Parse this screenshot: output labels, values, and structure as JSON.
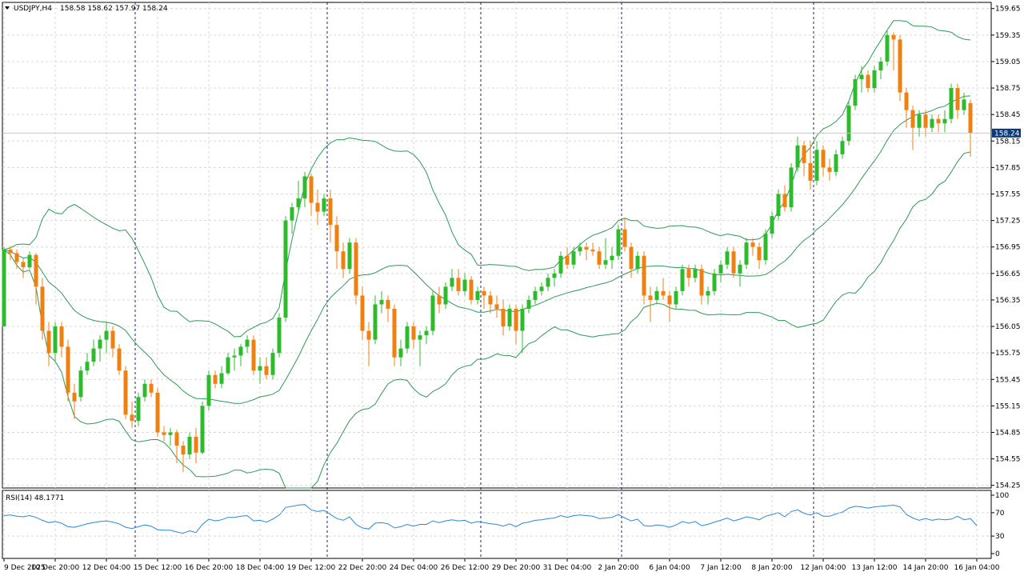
{
  "header": {
    "symbol": "USDJPY,H4",
    "ohlc": "158.58 158.62 157.97 158.24",
    "dropdown_icon": "triangle-down-icon"
  },
  "price_tag": {
    "value": "158.24"
  },
  "rsi": {
    "label": "RSI(14) 48.1771"
  },
  "colors": {
    "bull": "#2dbb2d",
    "bear": "#f08010",
    "bands": "#2d9a55",
    "rsi_line": "#2a88d8",
    "price_tag_bg": "#0a3a78",
    "grid": "#d8d8d8",
    "separator": "#1a1a80"
  },
  "chart_data": {
    "type": "candlestick",
    "y_ticks": [
      "159.65",
      "159.35",
      "159.05",
      "158.75",
      "158.45",
      "158.15",
      "157.85",
      "157.55",
      "157.25",
      "156.95",
      "156.65",
      "156.35",
      "156.05",
      "155.75",
      "155.45",
      "155.15",
      "154.85",
      "154.55",
      "154.25"
    ],
    "ylim": [
      154.22,
      159.72
    ],
    "rsi_ticks": [
      "100",
      "70",
      "30",
      "0"
    ],
    "rsi_ylim": [
      0,
      100
    ],
    "x_ticks": [
      "9 Dec 2025",
      "10 Dec 20:00",
      "12 Dec 04:00",
      "15 Dec 12:00",
      "16 Dec 20:00",
      "18 Dec 04:00",
      "19 Dec 12:00",
      "22 Dec 20:00",
      "24 Dec 04:00",
      "26 Dec 12:00",
      "29 Dec 20:00",
      "31 Dec 04:00",
      "2 Jan 20:00",
      "6 Jan 04:00",
      "7 Jan 12:00",
      "8 Jan 20:00",
      "12 Jan 04:00",
      "13 Jan 12:00",
      "14 Jan 20:00",
      "16 Jan 04:00"
    ],
    "x_tick_index": [
      0,
      8,
      16,
      24,
      32,
      40,
      48,
      56,
      64,
      72,
      80,
      88,
      96,
      104,
      112,
      120,
      128,
      136,
      144,
      152
    ],
    "separator_index": [
      21,
      51,
      75,
      97,
      127
    ],
    "candles": [
      [
        156.05,
        156.95,
        156.05,
        156.92
      ],
      [
        156.92,
        156.96,
        156.8,
        156.88
      ],
      [
        156.88,
        156.92,
        156.7,
        156.78
      ],
      [
        156.78,
        156.82,
        156.6,
        156.72
      ],
      [
        156.72,
        156.9,
        156.7,
        156.86
      ],
      [
        156.86,
        156.88,
        156.3,
        156.5
      ],
      [
        156.5,
        156.6,
        155.9,
        156.0
      ],
      [
        156.0,
        156.1,
        155.6,
        155.75
      ],
      [
        155.75,
        156.1,
        155.65,
        156.05
      ],
      [
        156.05,
        156.1,
        155.7,
        155.82
      ],
      [
        155.82,
        155.9,
        155.2,
        155.3
      ],
      [
        155.3,
        155.4,
        155.0,
        155.2
      ],
      [
        155.25,
        155.6,
        155.2,
        155.55
      ],
      [
        155.55,
        155.75,
        155.5,
        155.65
      ],
      [
        155.65,
        155.9,
        155.6,
        155.8
      ],
      [
        155.8,
        155.95,
        155.65,
        155.9
      ],
      [
        155.9,
        156.1,
        155.75,
        156.0
      ],
      [
        156.0,
        156.05,
        155.7,
        155.8
      ],
      [
        155.8,
        155.85,
        155.5,
        155.55
      ],
      [
        155.55,
        155.6,
        155.0,
        155.05
      ],
      [
        155.05,
        155.2,
        154.9,
        154.98
      ],
      [
        154.98,
        155.3,
        154.92,
        155.25
      ],
      [
        155.25,
        155.45,
        155.2,
        155.4
      ],
      [
        155.4,
        155.45,
        155.25,
        155.3
      ],
      [
        155.3,
        155.35,
        154.8,
        154.85
      ],
      [
        154.85,
        154.92,
        154.75,
        154.82
      ],
      [
        154.82,
        154.9,
        154.7,
        154.85
      ],
      [
        154.85,
        154.88,
        154.5,
        154.7
      ],
      [
        154.7,
        154.75,
        154.4,
        154.6
      ],
      [
        154.6,
        154.85,
        154.55,
        154.8
      ],
      [
        154.8,
        154.9,
        154.5,
        154.62
      ],
      [
        154.62,
        155.2,
        154.6,
        155.15
      ],
      [
        155.15,
        155.55,
        155.1,
        155.5
      ],
      [
        155.5,
        155.55,
        155.35,
        155.4
      ],
      [
        155.4,
        155.6,
        155.35,
        155.52
      ],
      [
        155.52,
        155.75,
        155.5,
        155.7
      ],
      [
        155.7,
        155.8,
        155.55,
        155.72
      ],
      [
        155.72,
        155.85,
        155.6,
        155.82
      ],
      [
        155.82,
        155.95,
        155.75,
        155.9
      ],
      [
        155.9,
        155.95,
        155.5,
        155.55
      ],
      [
        155.55,
        155.7,
        155.4,
        155.6
      ],
      [
        155.6,
        155.7,
        155.45,
        155.5
      ],
      [
        155.5,
        155.8,
        155.45,
        155.75
      ],
      [
        155.75,
        156.2,
        155.7,
        156.15
      ],
      [
        156.15,
        157.3,
        156.1,
        157.25
      ],
      [
        157.25,
        157.45,
        157.1,
        157.4
      ],
      [
        157.4,
        157.7,
        157.35,
        157.5
      ],
      [
        157.5,
        157.8,
        157.4,
        157.75
      ],
      [
        157.75,
        157.78,
        157.3,
        157.45
      ],
      [
        157.45,
        157.6,
        157.2,
        157.35
      ],
      [
        157.35,
        157.55,
        157.3,
        157.5
      ],
      [
        157.5,
        157.6,
        157.0,
        157.2
      ],
      [
        157.2,
        157.3,
        156.7,
        156.9
      ],
      [
        156.9,
        157.0,
        156.6,
        156.7
      ],
      [
        156.7,
        157.05,
        156.65,
        157.0
      ],
      [
        157.0,
        157.05,
        156.3,
        156.4
      ],
      [
        156.4,
        156.5,
        155.9,
        156.0
      ],
      [
        156.0,
        156.1,
        155.6,
        155.9
      ],
      [
        155.9,
        156.4,
        155.85,
        156.3
      ],
      [
        156.3,
        156.45,
        156.2,
        156.35
      ],
      [
        156.35,
        156.4,
        156.1,
        156.25
      ],
      [
        156.25,
        156.3,
        155.6,
        155.7
      ],
      [
        155.7,
        155.9,
        155.6,
        155.8
      ],
      [
        155.8,
        156.1,
        155.75,
        156.05
      ],
      [
        156.05,
        156.1,
        155.8,
        155.9
      ],
      [
        155.9,
        156.0,
        155.6,
        155.95
      ],
      [
        155.95,
        156.05,
        155.85,
        156.0
      ],
      [
        156.0,
        156.45,
        155.95,
        156.4
      ],
      [
        156.4,
        156.5,
        156.2,
        156.3
      ],
      [
        156.3,
        156.55,
        156.25,
        156.5
      ],
      [
        156.5,
        156.7,
        156.45,
        156.6
      ],
      [
        156.6,
        156.7,
        156.4,
        156.45
      ],
      [
        156.45,
        156.65,
        156.4,
        156.58
      ],
      [
        156.58,
        156.62,
        156.3,
        156.35
      ],
      [
        156.35,
        156.5,
        156.3,
        156.45
      ],
      [
        156.45,
        156.5,
        156.25,
        156.4
      ],
      [
        156.4,
        156.45,
        156.2,
        156.3
      ],
      [
        156.3,
        156.4,
        156.15,
        156.25
      ],
      [
        156.25,
        156.35,
        155.95,
        156.05
      ],
      [
        156.05,
        156.3,
        156.0,
        156.25
      ],
      [
        156.25,
        156.3,
        155.85,
        156.0
      ],
      [
        156.0,
        156.3,
        155.75,
        156.25
      ],
      [
        156.25,
        156.4,
        156.2,
        156.35
      ],
      [
        156.35,
        156.5,
        156.3,
        156.45
      ],
      [
        156.45,
        156.55,
        156.4,
        156.5
      ],
      [
        156.5,
        156.65,
        156.45,
        156.6
      ],
      [
        156.6,
        156.7,
        156.5,
        156.65
      ],
      [
        156.65,
        156.9,
        156.6,
        156.85
      ],
      [
        156.85,
        156.95,
        156.7,
        156.75
      ],
      [
        156.75,
        156.95,
        156.7,
        156.9
      ],
      [
        156.9,
        157.0,
        156.85,
        156.95
      ],
      [
        156.95,
        157.0,
        156.8,
        156.92
      ],
      [
        156.92,
        157.0,
        156.85,
        156.9
      ],
      [
        156.9,
        156.95,
        156.7,
        156.75
      ],
      [
        156.75,
        157.05,
        156.7,
        156.8
      ],
      [
        156.8,
        156.95,
        156.7,
        156.85
      ],
      [
        156.85,
        157.2,
        156.8,
        157.15
      ],
      [
        157.15,
        157.28,
        156.9,
        156.95
      ],
      [
        156.95,
        157.0,
        156.6,
        156.7
      ],
      [
        156.7,
        156.9,
        156.65,
        156.85
      ],
      [
        156.85,
        156.9,
        156.3,
        156.4
      ],
      [
        156.4,
        156.5,
        156.1,
        156.35
      ],
      [
        156.35,
        156.5,
        156.3,
        156.45
      ],
      [
        156.45,
        156.6,
        156.35,
        156.4
      ],
      [
        156.4,
        156.45,
        156.1,
        156.3
      ],
      [
        156.3,
        156.5,
        156.25,
        156.45
      ],
      [
        156.45,
        156.75,
        156.4,
        156.7
      ],
      [
        156.7,
        156.75,
        156.5,
        156.6
      ],
      [
        156.6,
        156.75,
        156.55,
        156.7
      ],
      [
        156.7,
        156.75,
        156.3,
        156.4
      ],
      [
        156.4,
        156.5,
        156.3,
        156.45
      ],
      [
        156.45,
        156.7,
        156.4,
        156.65
      ],
      [
        156.65,
        156.8,
        156.55,
        156.75
      ],
      [
        156.75,
        156.95,
        156.7,
        156.9
      ],
      [
        156.9,
        156.95,
        156.6,
        156.65
      ],
      [
        156.65,
        156.8,
        156.5,
        156.75
      ],
      [
        156.75,
        157.05,
        156.7,
        157.0
      ],
      [
        157.0,
        157.05,
        156.85,
        156.95
      ],
      [
        156.95,
        157.0,
        156.7,
        156.8
      ],
      [
        156.8,
        157.15,
        156.75,
        157.1
      ],
      [
        157.1,
        157.35,
        157.05,
        157.3
      ],
      [
        157.3,
        157.6,
        157.25,
        157.55
      ],
      [
        157.55,
        157.65,
        157.35,
        157.4
      ],
      [
        157.4,
        157.9,
        157.35,
        157.85
      ],
      [
        157.85,
        158.2,
        157.8,
        158.1
      ],
      [
        158.1,
        158.15,
        157.75,
        157.9
      ],
      [
        157.9,
        158.15,
        157.6,
        157.7
      ],
      [
        157.7,
        158.15,
        157.65,
        158.05
      ],
      [
        158.05,
        158.1,
        157.75,
        157.85
      ],
      [
        157.85,
        157.95,
        157.7,
        157.8
      ],
      [
        157.8,
        158.05,
        157.75,
        158.0
      ],
      [
        158.0,
        158.2,
        157.95,
        158.15
      ],
      [
        158.15,
        158.6,
        158.1,
        158.55
      ],
      [
        158.55,
        158.9,
        158.5,
        158.85
      ],
      [
        158.85,
        159.0,
        158.7,
        158.9
      ],
      [
        158.9,
        158.95,
        158.7,
        158.75
      ],
      [
        158.75,
        159.0,
        158.7,
        158.95
      ],
      [
        158.95,
        159.1,
        158.85,
        159.05
      ],
      [
        159.05,
        159.4,
        159.0,
        159.35
      ],
      [
        159.35,
        159.38,
        158.95,
        159.3
      ],
      [
        159.3,
        159.35,
        158.6,
        158.7
      ],
      [
        158.7,
        158.75,
        158.3,
        158.5
      ],
      [
        158.5,
        158.55,
        158.05,
        158.3
      ],
      [
        158.3,
        158.5,
        158.2,
        158.45
      ],
      [
        158.45,
        158.5,
        158.2,
        158.3
      ],
      [
        158.3,
        158.45,
        158.25,
        158.4
      ],
      [
        158.4,
        158.45,
        158.25,
        158.35
      ],
      [
        158.35,
        158.5,
        158.25,
        158.4
      ],
      [
        158.4,
        158.8,
        158.35,
        158.75
      ],
      [
        158.75,
        158.8,
        158.4,
        158.5
      ],
      [
        158.5,
        158.7,
        158.45,
        158.62
      ],
      [
        158.58,
        158.62,
        157.97,
        158.24
      ]
    ],
    "rsi_values": [
      65,
      66,
      64,
      63,
      65,
      62,
      57,
      53,
      55,
      52,
      46,
      45,
      48,
      51,
      53,
      55,
      56,
      54,
      51,
      45,
      43,
      46,
      49,
      47,
      41,
      40,
      40,
      37,
      35,
      39,
      36,
      50,
      59,
      56,
      58,
      62,
      62,
      64,
      65,
      56,
      57,
      54,
      59,
      66,
      79,
      81,
      83,
      84,
      75,
      72,
      74,
      67,
      60,
      57,
      63,
      50,
      44,
      42,
      52,
      53,
      51,
      44,
      46,
      50,
      47,
      50,
      50,
      56,
      53,
      56,
      58,
      56,
      57,
      52,
      55,
      53,
      51,
      50,
      47,
      51,
      46,
      52,
      54,
      57,
      58,
      60,
      61,
      65,
      62,
      65,
      66,
      65,
      64,
      60,
      61,
      62,
      67,
      61,
      56,
      59,
      48,
      47,
      49,
      48,
      45,
      49,
      55,
      52,
      55,
      48,
      50,
      54,
      57,
      61,
      56,
      59,
      63,
      61,
      58,
      64,
      67,
      70,
      63,
      72,
      75,
      69,
      66,
      70,
      64,
      64,
      68,
      71,
      78,
      81,
      80,
      78,
      80,
      81,
      82,
      83,
      80,
      67,
      61,
      57,
      60,
      57,
      59,
      58,
      59,
      64,
      58,
      60,
      48
    ]
  }
}
